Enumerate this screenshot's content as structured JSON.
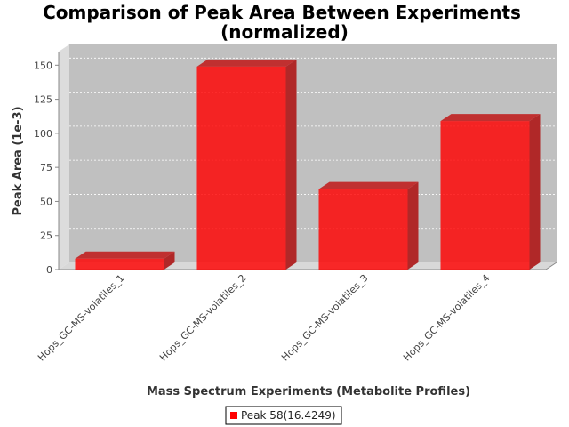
{
  "chart_data": {
    "type": "bar",
    "title_lines": [
      "Comparison of Peak Area Between Experiments",
      "(normalized)"
    ],
    "xlabel": "Mass Spectrum Experiments (Metabolite Profiles)",
    "ylabel": "Peak Area (1e-3)",
    "categories": [
      "Hops_GC-MS-volatiles_1",
      "Hops_GC-MS-volatiles_2",
      "Hops_GC-MS-volatiles_3",
      "Hops_GC-MS-volatiles_4"
    ],
    "series": [
      {
        "name": "Peak 58(16.4249)",
        "values": [
          8,
          149,
          59,
          109
        ],
        "color": "#ff0000"
      }
    ],
    "ylim": [
      0,
      160
    ],
    "yticks": [
      0,
      25,
      50,
      75,
      100,
      125,
      150
    ],
    "grid": true,
    "legend": "bottom-center",
    "plot_background": "#c0c0c0"
  }
}
